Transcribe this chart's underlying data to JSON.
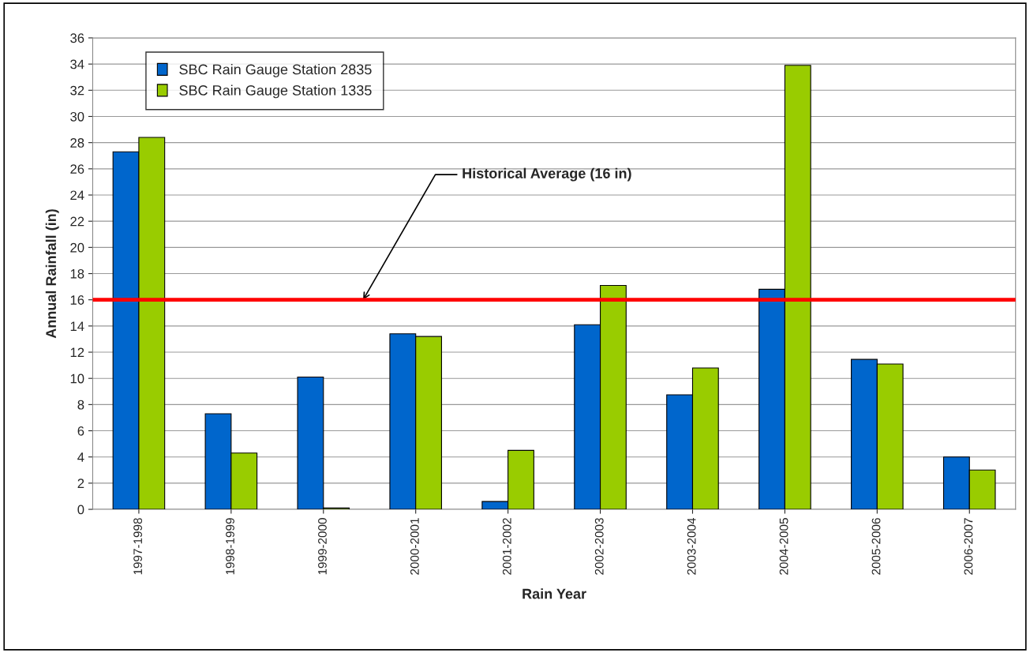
{
  "chart_data": {
    "type": "bar",
    "xlabel": "Rain Year",
    "ylabel": "Annual Rainfall (in)",
    "categories": [
      "1997-1998",
      "1998-1999",
      "1999-2000",
      "2000-2001",
      "2001-2002",
      "2002-2003",
      "2003-2004",
      "2004-2005",
      "2005-2006",
      "2006-2007"
    ],
    "series": [
      {
        "name": "SBC Rain Gauge Station 2835",
        "color": "#0066cc",
        "values": [
          27.3,
          7.3,
          10.1,
          13.4,
          0.6,
          14.1,
          8.75,
          16.8,
          11.45,
          4.0
        ]
      },
      {
        "name": "SBC Rain Gauge Station 1335",
        "color": "#99cc00",
        "values": [
          28.4,
          4.3,
          0.1,
          13.2,
          4.5,
          17.1,
          10.8,
          33.9,
          11.1,
          3.0
        ]
      }
    ],
    "ylim": [
      0,
      36
    ],
    "yticks": [
      0,
      2,
      4,
      6,
      8,
      10,
      12,
      14,
      16,
      18,
      20,
      22,
      24,
      26,
      28,
      30,
      32,
      34,
      36
    ],
    "ref_lines": [
      {
        "axis": "y",
        "value": 16,
        "label": "Historical Average (16 in)",
        "color": "#ff0000"
      }
    ],
    "grid": "y",
    "legend": "top left"
  }
}
